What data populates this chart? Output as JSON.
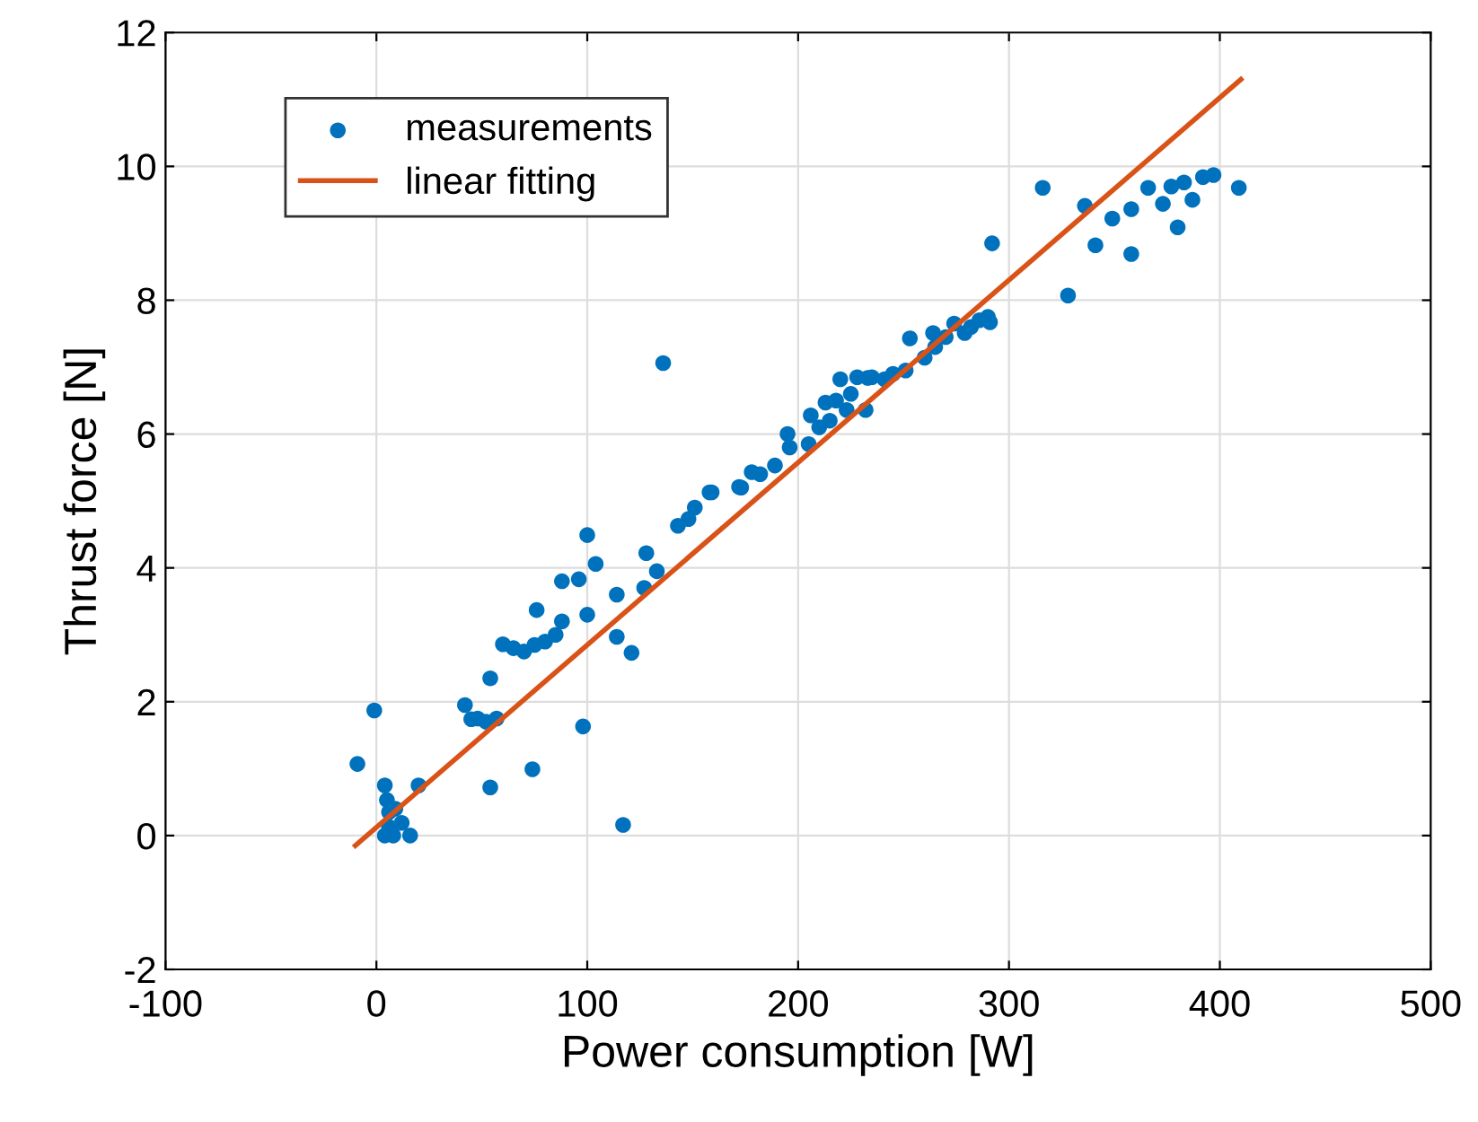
{
  "chart_data": {
    "type": "scatter",
    "xlabel": "Power consumption [W]",
    "ylabel": "Thrust force [N]",
    "xlim": [
      -100,
      500
    ],
    "xticks": [
      -100,
      0,
      100,
      200,
      300,
      400,
      500
    ],
    "ylim": [
      -2,
      12
    ],
    "yticks": [
      -2,
      0,
      2,
      4,
      6,
      8,
      10,
      12
    ],
    "grid": true,
    "legend": "top left",
    "series": [
      {
        "name": "measurements",
        "marker": "circle",
        "color": "#0072bd",
        "x": [
          -9,
          -1,
          4,
          5,
          6,
          4,
          8,
          12,
          6,
          16,
          20,
          9,
          54,
          74,
          98,
          117,
          54,
          42,
          45,
          48,
          52,
          57,
          60,
          65,
          70,
          75,
          80,
          85,
          76,
          88,
          100,
          88,
          96,
          104,
          100,
          114,
          114,
          121,
          127,
          128,
          133,
          143,
          151,
          159,
          173,
          182,
          136,
          148,
          158,
          172,
          178,
          189,
          195,
          196,
          206,
          213,
          220,
          223,
          232,
          233,
          241,
          251,
          253,
          260,
          264,
          274,
          279,
          290,
          291,
          292,
          328,
          341,
          358,
          316,
          336,
          349,
          358,
          366,
          373,
          377,
          383,
          380,
          392,
          397,
          409,
          387,
          205,
          210,
          215,
          218,
          225,
          228,
          235,
          245,
          265,
          270,
          282,
          286
        ],
        "values": [
          1.07,
          1.87,
          0.75,
          0.53,
          0.35,
          0,
          0,
          0.19,
          0.13,
          0,
          0.75,
          0.4,
          0.72,
          0.99,
          1.63,
          0.16,
          2.35,
          1.95,
          1.74,
          1.75,
          1.7,
          1.75,
          2.86,
          2.8,
          2.75,
          2.85,
          2.9,
          3.0,
          3.37,
          3.2,
          3.3,
          3.8,
          3.83,
          4.06,
          4.49,
          3.6,
          2.97,
          2.73,
          3.7,
          4.22,
          3.95,
          4.63,
          4.9,
          5.13,
          5.2,
          5.4,
          7.06,
          4.73,
          5.13,
          5.21,
          5.43,
          5.53,
          6.0,
          5.8,
          6.28,
          6.47,
          6.82,
          6.36,
          6.36,
          6.84,
          6.82,
          6.95,
          7.43,
          7.14,
          7.51,
          7.65,
          7.51,
          7.75,
          7.67,
          8.85,
          8.07,
          8.82,
          8.69,
          9.68,
          9.41,
          9.22,
          9.36,
          9.68,
          9.44,
          9.7,
          9.76,
          9.09,
          9.84,
          9.87,
          9.68,
          9.5,
          5.85,
          6.1,
          6.2,
          6.5,
          6.6,
          6.85,
          6.85,
          6.9,
          7.3,
          7.45,
          7.6,
          7.7
        ]
      },
      {
        "name": "linear fitting",
        "type": "line",
        "line_style": "solid",
        "marker": "none",
        "color": "#d95319",
        "x": [
          -10,
          410
        ],
        "values": [
          -0.15,
          11.3
        ]
      }
    ]
  }
}
